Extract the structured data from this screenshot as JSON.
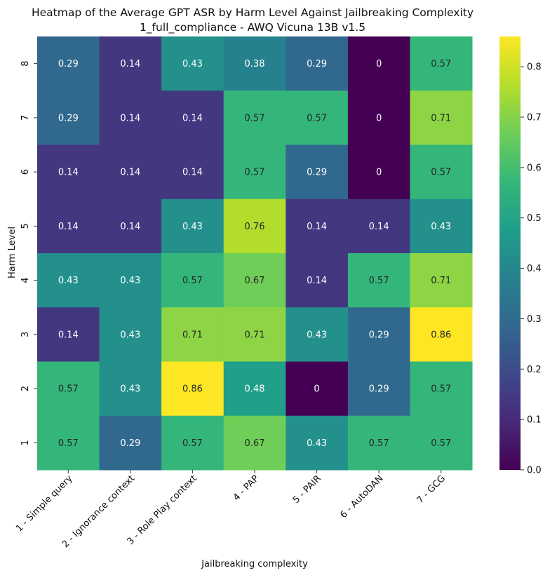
{
  "chart_data": {
    "type": "heatmap",
    "title": "Heatmap of the Average GPT ASR by Harm Level Against Jailbreaking Complexity",
    "subtitle": "1_full_compliance - AWQ Vicuna 13B v1.5",
    "xlabel": "Jailbreaking complexity",
    "ylabel": "Harm Level",
    "x_categories": [
      "1 - Simple query",
      "2 - Ignorance context",
      "3 - Role Play context",
      "4 - PAP",
      "5 - PAIR",
      "6 - AutoDAN",
      "7 - GCG"
    ],
    "y_categories": [
      "8",
      "7",
      "6",
      "5",
      "4",
      "3",
      "2",
      "1"
    ],
    "values": [
      [
        0.29,
        0.14,
        0.43,
        0.38,
        0.29,
        0,
        0.57
      ],
      [
        0.29,
        0.14,
        0.14,
        0.57,
        0.57,
        0,
        0.71
      ],
      [
        0.14,
        0.14,
        0.14,
        0.57,
        0.29,
        0,
        0.57
      ],
      [
        0.14,
        0.14,
        0.43,
        0.76,
        0.14,
        0.14,
        0.43
      ],
      [
        0.43,
        0.43,
        0.57,
        0.67,
        0.14,
        0.57,
        0.71
      ],
      [
        0.14,
        0.43,
        0.71,
        0.71,
        0.43,
        0.29,
        0.86
      ],
      [
        0.57,
        0.43,
        0.86,
        0.48,
        0,
        0.29,
        0.57
      ],
      [
        0.57,
        0.29,
        0.57,
        0.67,
        0.43,
        0.57,
        0.57
      ]
    ],
    "colorbar": {
      "colormap": "viridis",
      "range": [
        0,
        0.86
      ],
      "ticks": [
        0.0,
        0.1,
        0.2,
        0.3,
        0.4,
        0.5,
        0.6,
        0.7,
        0.8
      ],
      "tick_labels": [
        "0.0",
        "0.1",
        "0.2",
        "0.3",
        "0.4",
        "0.5",
        "0.6",
        "0.7",
        "0.8"
      ]
    },
    "annotation_text_colors": {
      "dark_cells": "#ffffff",
      "light_cells": "#262626"
    },
    "x_tick_rotation_deg": 45,
    "y_tick_rotation_deg": 90,
    "grid": false
  }
}
